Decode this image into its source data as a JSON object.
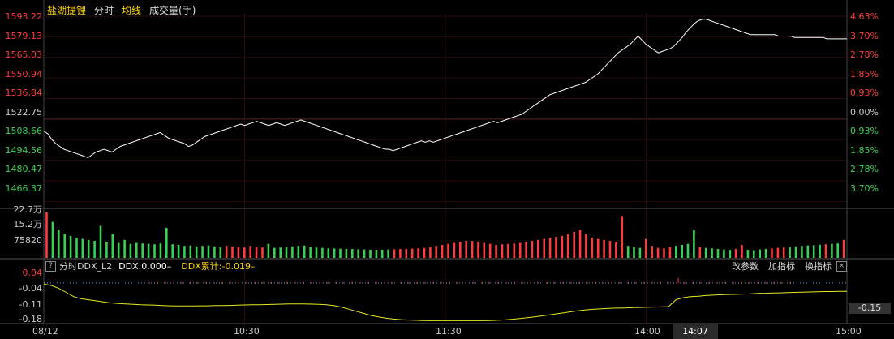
{
  "header": {
    "stock_name": "盐湖提锂",
    "mode": "分时",
    "avg_label": "均线",
    "volume_label": "成交量(手)"
  },
  "colors": {
    "up": "#ff3b3b",
    "down": "#39d153",
    "price_line": "#ffffff",
    "avg_line": "#e8e820",
    "grid": "#3a0000",
    "name": "#ffd400",
    "ddx_yellow": "#ffd400"
  },
  "price_axis_left": [
    "1593.22",
    "1579.13",
    "1565.03",
    "1550.94",
    "1536.84",
    "1522.75",
    "1508.66",
    "1494.56",
    "1480.47",
    "1466.37"
  ],
  "price_axis_right": [
    "4.63%",
    "3.70%",
    "2.78%",
    "1.85%",
    "0.93%",
    "0.00%",
    "0.93%",
    "1.85%",
    "2.78%",
    "3.70%"
  ],
  "volume_axis": [
    "22.7万",
    "15.2万",
    "75820"
  ],
  "ddx_axis": [
    "0.04",
    "-0.04",
    "-0.11",
    "-0.18"
  ],
  "ddx_bar": {
    "question": "?",
    "name": "分时DDX_L2",
    "ddx_value": "DDX:0.000–",
    "ddx_cum": "DDX累计:-0.019–",
    "adjust_btn": "改参数",
    "add_btn": "加指标",
    "switch_btn": "换指标",
    "close": "×"
  },
  "ddx_current": "-0.15",
  "time_axis": [
    "08/12",
    "10:30",
    "11:30",
    "14:00",
    "15:00"
  ],
  "cursor_time": "14:07",
  "chart_data": {
    "type": "line",
    "price_range": [
      1466.37,
      1593.22
    ],
    "prev_close": 1522.75,
    "price": [
      1511,
      1509,
      1505,
      1502,
      1500,
      1498,
      1497,
      1496,
      1495,
      1494,
      1493,
      1492,
      1494,
      1496,
      1497,
      1498,
      1497,
      1496,
      1498,
      1500,
      1501,
      1502,
      1503,
      1504,
      1505,
      1506,
      1507,
      1508,
      1509,
      1510,
      1508,
      1506,
      1505,
      1504,
      1503,
      1502,
      1500,
      1501,
      1503,
      1505,
      1507,
      1508,
      1509,
      1510,
      1511,
      1512,
      1513,
      1514,
      1515,
      1516,
      1515,
      1516,
      1517,
      1518,
      1517,
      1516,
      1515,
      1516,
      1517,
      1516,
      1515,
      1516,
      1517,
      1518,
      1519,
      1518,
      1517,
      1516,
      1515,
      1514,
      1513,
      1512,
      1511,
      1510,
      1509,
      1508,
      1507,
      1506,
      1505,
      1504,
      1503,
      1502,
      1501,
      1500,
      1499,
      1498,
      1498,
      1497,
      1498,
      1499,
      1500,
      1501,
      1502,
      1503,
      1504,
      1503,
      1504,
      1503,
      1504,
      1505,
      1506,
      1507,
      1508,
      1509,
      1510,
      1511,
      1512,
      1513,
      1514,
      1515,
      1516,
      1517,
      1518,
      1517,
      1518,
      1519,
      1520,
      1521,
      1522,
      1523,
      1525,
      1527,
      1529,
      1531,
      1533,
      1535,
      1537,
      1538,
      1539,
      1540,
      1541,
      1542,
      1543,
      1544,
      1545,
      1546,
      1548,
      1550,
      1552,
      1555,
      1558,
      1561,
      1564,
      1567,
      1569,
      1571,
      1573,
      1576,
      1579,
      1576,
      1573,
      1571,
      1569,
      1567,
      1568,
      1569,
      1570,
      1572,
      1575,
      1578,
      1582,
      1585,
      1588,
      1590,
      1591,
      1591,
      1590,
      1589,
      1588,
      1587,
      1586,
      1585,
      1584,
      1583,
      1582,
      1581,
      1580,
      1580,
      1580,
      1580,
      1580,
      1580,
      1580,
      1579,
      1579,
      1579,
      1579,
      1578,
      1578,
      1578,
      1578,
      1578,
      1578,
      1578,
      1578,
      1577,
      1577,
      1577,
      1577,
      1577,
      1577
    ],
    "avg": [
      -0.005,
      -0.012,
      -0.025,
      -0.045,
      -0.065,
      -0.075,
      -0.08,
      -0.085,
      -0.09,
      -0.095,
      -0.098,
      -0.1,
      -0.102,
      -0.104,
      -0.105,
      -0.106,
      -0.108,
      -0.109,
      -0.11,
      -0.11,
      -0.11,
      -0.109,
      -0.109,
      -0.108,
      -0.108,
      -0.107,
      -0.106,
      -0.105,
      -0.104,
      -0.104,
      -0.103,
      -0.102,
      -0.101,
      -0.1,
      -0.1,
      -0.1,
      -0.101,
      -0.102,
      -0.104,
      -0.108,
      -0.115,
      -0.125,
      -0.135,
      -0.145,
      -0.155,
      -0.162,
      -0.168,
      -0.172,
      -0.175,
      -0.177,
      -0.178,
      -0.179,
      -0.18,
      -0.18,
      -0.18,
      -0.18,
      -0.18,
      -0.18,
      -0.18,
      -0.18,
      -0.179,
      -0.178,
      -0.176,
      -0.173,
      -0.17,
      -0.166,
      -0.162,
      -0.157,
      -0.152,
      -0.147,
      -0.142,
      -0.137,
      -0.132,
      -0.128,
      -0.125,
      -0.123,
      -0.121,
      -0.12,
      -0.119,
      -0.118,
      -0.117,
      -0.116,
      -0.115,
      -0.114,
      -0.113,
      -0.08,
      -0.07,
      -0.065,
      -0.063,
      -0.06,
      -0.058,
      -0.056,
      -0.055,
      -0.054,
      -0.053,
      -0.052,
      -0.05,
      -0.049,
      -0.048,
      -0.047,
      -0.046,
      -0.045,
      -0.044,
      -0.043,
      -0.042,
      -0.041,
      -0.041,
      -0.04,
      -0.04
    ],
    "volume_max": 227000,
    "volume": [
      227000,
      180000,
      140000,
      120000,
      110000,
      100000,
      95000,
      90000,
      85000,
      160000,
      80000,
      120000,
      75000,
      90000,
      70000,
      75000,
      72000,
      70000,
      68000,
      72000,
      150000,
      68000,
      65000,
      60000,
      62000,
      58000,
      60000,
      62000,
      58000,
      55000,
      60000,
      58000,
      55000,
      52000,
      60000,
      55000,
      52000,
      70000,
      50000,
      52000,
      55000,
      58000,
      60000,
      62000,
      55000,
      52000,
      50000,
      48000,
      47000,
      46000,
      45000,
      44000,
      43000,
      42000,
      41000,
      40000,
      41000,
      42000,
      43000,
      44000,
      45000,
      46000,
      48000,
      50000,
      55000,
      60000,
      65000,
      70000,
      75000,
      80000,
      85000,
      85000,
      80000,
      75000,
      70000,
      65000,
      68000,
      70000,
      72000,
      75000,
      80000,
      85000,
      90000,
      95000,
      100000,
      105000,
      110000,
      120000,
      130000,
      140000,
      120000,
      100000,
      95000,
      90000,
      85000,
      80000,
      210000,
      60000,
      55000,
      50000,
      95000,
      60000,
      50000,
      48000,
      55000,
      60000,
      65000,
      70000,
      140000,
      55000,
      50000,
      48000,
      45000,
      42000,
      40000,
      45000,
      65000,
      40000,
      38000,
      42000,
      45000,
      48000,
      50000,
      52000,
      55000,
      58000,
      60000,
      62000,
      64000,
      66000,
      68000,
      70000,
      72000,
      90000
    ],
    "volume_up": [
      1,
      0,
      0,
      0,
      0,
      0,
      0,
      0,
      0,
      0,
      0,
      0,
      0,
      0,
      0,
      0,
      0,
      0,
      0,
      0,
      0,
      0,
      0,
      0,
      0,
      0,
      0,
      0,
      0,
      0,
      1,
      1,
      1,
      1,
      1,
      1,
      1,
      0,
      0,
      0,
      0,
      0,
      0,
      0,
      0,
      0,
      0,
      0,
      0,
      0,
      0,
      0,
      0,
      0,
      0,
      0,
      0,
      0,
      1,
      1,
      1,
      1,
      1,
      1,
      1,
      1,
      1,
      1,
      1,
      1,
      1,
      1,
      1,
      1,
      1,
      1,
      1,
      1,
      1,
      1,
      1,
      1,
      1,
      1,
      1,
      1,
      1,
      1,
      1,
      1,
      1,
      1,
      1,
      1,
      1,
      1,
      1,
      0,
      0,
      0,
      1,
      1,
      1,
      1,
      1,
      0,
      0,
      0,
      0,
      1,
      0,
      0,
      0,
      0,
      0,
      1,
      1,
      0,
      0,
      0,
      0,
      1,
      1,
      1,
      0,
      0,
      0,
      0,
      0,
      0,
      1,
      0,
      0,
      1
    ]
  }
}
